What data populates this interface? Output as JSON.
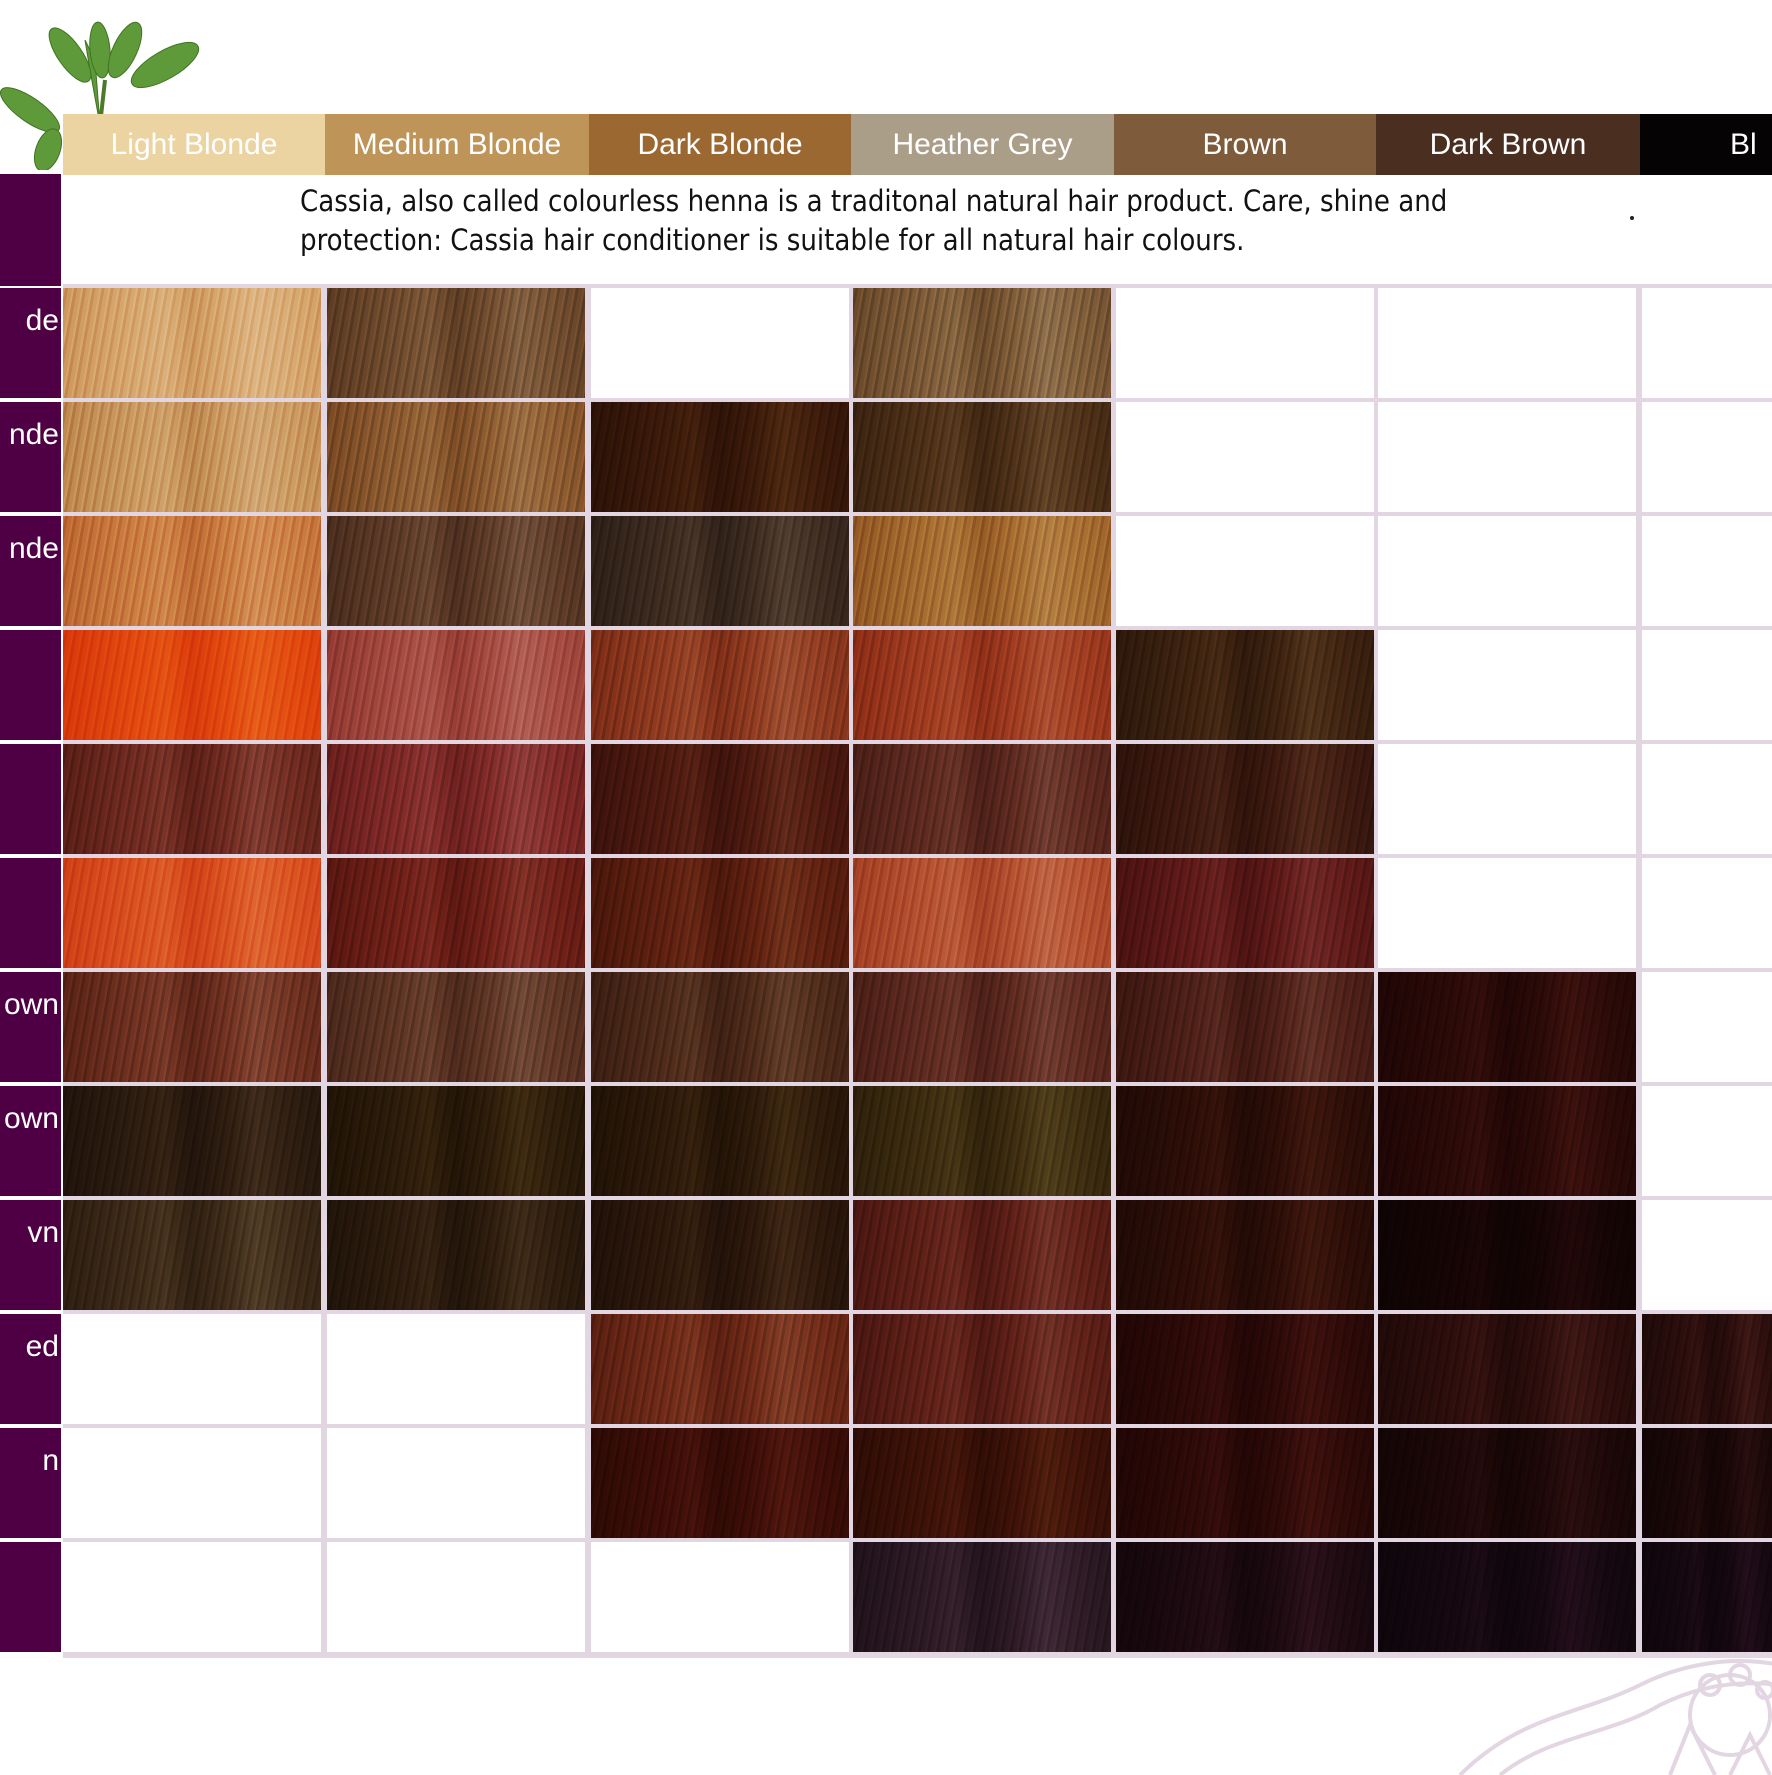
{
  "header": {
    "columns": [
      {
        "label": "Light Blonde",
        "color": "#ebd3a2"
      },
      {
        "label": "Medium Blonde",
        "color": "#bf9459"
      },
      {
        "label": "Dark Blonde",
        "color": "#9c6832"
      },
      {
        "label": "Heather Grey",
        "color": "#ab9e89"
      },
      {
        "label": "Brown",
        "color": "#7d5b3b"
      },
      {
        "label": "Dark Brown",
        "color": "#4a2e1f"
      },
      {
        "label": "Bl",
        "color": "#050303"
      }
    ]
  },
  "description": {
    "line1": "Cassia, also called colourless henna is a traditonal natural hair product. Care, shine and",
    "line2": "protection: Cassia hair conditioner is suitable for all natural hair colours."
  },
  "colors": {
    "row_label_bg": "#4f0044",
    "grid_line": "#e2d6e2"
  },
  "rows": [
    {
      "label": "de",
      "swatches": [
        "#d6a66e",
        "#6e4b2e",
        null,
        "#7b5a38",
        null,
        null,
        null
      ]
    },
    {
      "label": "nde",
      "swatches": [
        "#c9975f",
        "#8a5a30",
        "#3a1a0a",
        "#4c3018",
        null,
        null,
        null
      ]
    },
    {
      "label": "nde",
      "swatches": [
        "#c97a40",
        "#5c3b28",
        "#3c2b20",
        "#a36a30",
        null,
        null,
        null
      ]
    },
    {
      "label": "",
      "swatches": [
        "#e0480f",
        "#a24a40",
        "#8c3a20",
        "#9c3b20",
        "#3c2210",
        null,
        null
      ]
    },
    {
      "label": "",
      "swatches": [
        "#6c2a20",
        "#7c2a28",
        "#4c1a10",
        "#5c2a20",
        "#3c1a10",
        null,
        null
      ]
    },
    {
      "label": "",
      "swatches": [
        "#d85020",
        "#6c2018",
        "#5c2010",
        "#b25030",
        "#5c1a18",
        null,
        null
      ]
    },
    {
      "label": "own",
      "swatches": [
        "#6c3020",
        "#5c3525",
        "#4c2a1a",
        "#5c2a20",
        "#4c2018",
        "#2a0a08",
        null
      ]
    },
    {
      "label": "own",
      "swatches": [
        "#2c1c10",
        "#2c1c0a",
        "#2c1a0a",
        "#3c2c10",
        "#2c0e08",
        "#2a0a08",
        null
      ]
    },
    {
      "label": "vn",
      "swatches": [
        "#3c2a18",
        "#2c1c0e",
        "#2c180c",
        "#5c2018",
        "#2c0e08",
        "#150505",
        null
      ]
    },
    {
      "label": "ed",
      "swatches": [
        null,
        null,
        "#6c2a18",
        "#5c2018",
        "#2c0a08",
        "#2c0e0c",
        "#2a0e0c"
      ]
    },
    {
      "label": "n",
      "swatches": [
        null,
        null,
        "#3c0e08",
        "#3c1208",
        "#2c0a08",
        "#1c0808",
        "#1a0808"
      ]
    },
    {
      "label": "",
      "swatches": [
        null,
        null,
        null,
        "#2c1a24",
        "#1c0a10",
        "#150810",
        "#150810"
      ]
    }
  ]
}
